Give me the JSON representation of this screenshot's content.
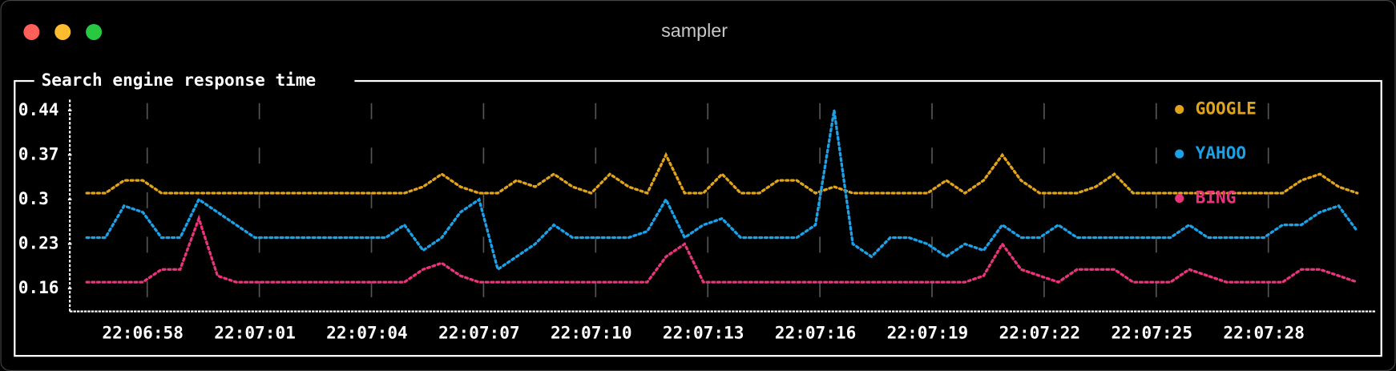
{
  "window_title": "sampler",
  "chart_data": {
    "type": "line",
    "title": "Search engine response time",
    "categories": [
      null,
      null,
      null,
      "22:06:58",
      null,
      null,
      null,
      null,
      null,
      "22:07:01",
      null,
      null,
      null,
      null,
      null,
      "22:07:04",
      null,
      null,
      null,
      null,
      null,
      "22:07:07",
      null,
      null,
      null,
      null,
      null,
      "22:07:10",
      null,
      null,
      null,
      null,
      null,
      "22:07:13",
      null,
      null,
      null,
      null,
      null,
      "22:07:16",
      null,
      null,
      null,
      null,
      null,
      "22:07:19",
      null,
      null,
      null,
      null,
      null,
      "22:07:22",
      null,
      null,
      null,
      null,
      null,
      "22:07:25",
      null,
      null,
      null,
      null,
      null,
      "22:07:28",
      null,
      null,
      null,
      null,
      null
    ],
    "series": [
      {
        "name": "GOOGLE",
        "color": "#e0a31c",
        "values": [
          0.31,
          0.31,
          0.33,
          0.33,
          0.31,
          0.31,
          0.31,
          0.31,
          0.31,
          0.31,
          0.31,
          0.31,
          0.31,
          0.31,
          0.31,
          0.31,
          0.31,
          0.31,
          0.32,
          0.34,
          0.32,
          0.31,
          0.31,
          0.33,
          0.32,
          0.34,
          0.32,
          0.31,
          0.34,
          0.32,
          0.31,
          0.37,
          0.31,
          0.31,
          0.34,
          0.31,
          0.31,
          0.33,
          0.33,
          0.31,
          0.32,
          0.31,
          0.31,
          0.31,
          0.31,
          0.31,
          0.33,
          0.31,
          0.33,
          0.37,
          0.33,
          0.31,
          0.31,
          0.31,
          0.32,
          0.34,
          0.31,
          0.31,
          0.31,
          0.31,
          0.31,
          0.31,
          0.31,
          0.31,
          0.31,
          0.33,
          0.34,
          0.32,
          0.31
        ]
      },
      {
        "name": "YAHOO",
        "color": "#1da1e6",
        "values": [
          0.24,
          0.24,
          0.29,
          0.28,
          0.24,
          0.24,
          0.3,
          0.28,
          0.26,
          0.24,
          0.24,
          0.24,
          0.24,
          0.24,
          0.24,
          0.24,
          0.24,
          0.26,
          0.22,
          0.24,
          0.28,
          0.3,
          0.19,
          0.21,
          0.23,
          0.26,
          0.24,
          0.24,
          0.24,
          0.24,
          0.25,
          0.3,
          0.24,
          0.26,
          0.27,
          0.24,
          0.24,
          0.24,
          0.24,
          0.26,
          0.44,
          0.23,
          0.21,
          0.24,
          0.24,
          0.23,
          0.21,
          0.23,
          0.22,
          0.26,
          0.24,
          0.24,
          0.26,
          0.24,
          0.24,
          0.24,
          0.24,
          0.24,
          0.24,
          0.26,
          0.24,
          0.24,
          0.24,
          0.24,
          0.26,
          0.26,
          0.28,
          0.29,
          0.25
        ]
      },
      {
        "name": "BING",
        "color": "#e8347a",
        "values": [
          0.17,
          0.17,
          0.17,
          0.17,
          0.19,
          0.19,
          0.27,
          0.18,
          0.17,
          0.17,
          0.17,
          0.17,
          0.17,
          0.17,
          0.17,
          0.17,
          0.17,
          0.17,
          0.19,
          0.2,
          0.18,
          0.17,
          0.17,
          0.17,
          0.17,
          0.17,
          0.17,
          0.17,
          0.17,
          0.17,
          0.17,
          0.21,
          0.23,
          0.17,
          0.17,
          0.17,
          0.17,
          0.17,
          0.17,
          0.17,
          0.17,
          0.17,
          0.17,
          0.17,
          0.17,
          0.17,
          0.17,
          0.17,
          0.18,
          0.23,
          0.19,
          0.18,
          0.17,
          0.19,
          0.19,
          0.19,
          0.17,
          0.17,
          0.17,
          0.19,
          0.18,
          0.17,
          0.17,
          0.17,
          0.17,
          0.19,
          0.19,
          0.18,
          0.17
        ]
      }
    ],
    "ylim": [
      0.124,
      0.457
    ],
    "yticks": [
      0.44,
      0.37,
      0.3,
      0.23,
      0.16
    ],
    "legend": "top-right",
    "grid": true
  }
}
